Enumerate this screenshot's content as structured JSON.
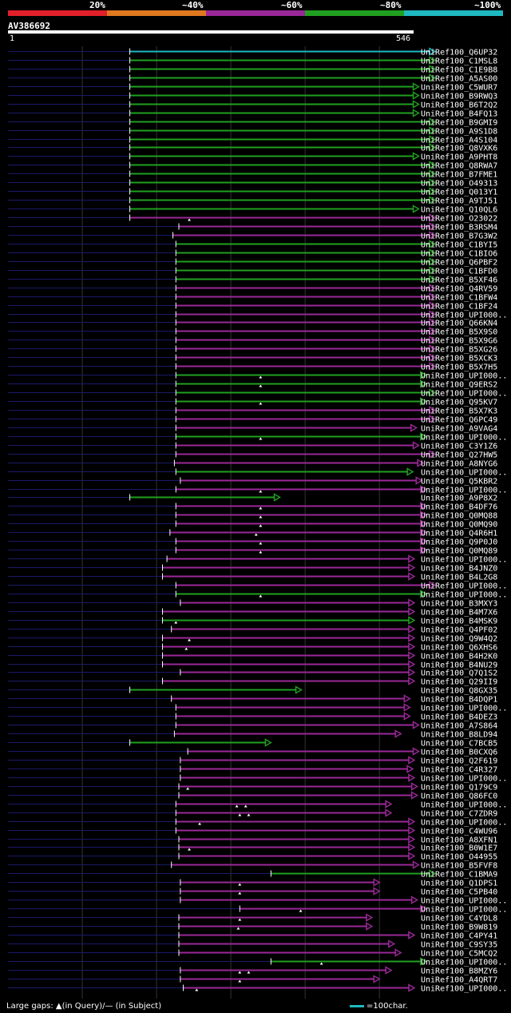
{
  "legend": [
    {
      "label": "20%",
      "color": "#e0202a"
    },
    {
      "label": "~40%",
      "color": "#e07820"
    },
    {
      "label": "~60%",
      "color": "#9a2898"
    },
    {
      "label": "~80%",
      "color": "#20a020"
    },
    {
      "label": "~100%",
      "color": "#1eb8c0"
    }
  ],
  "query": {
    "name": "AV386692",
    "start": "1",
    "end": "546",
    "length": 546
  },
  "colors": {
    "cyan": "#1eb8c0",
    "green": "#20a020",
    "purple": "#9a2898",
    "query_line": "#1a1a6a",
    "gridline": "#333333"
  },
  "footer": {
    "gaps": "Large gaps: ▲(in Query)/— (in Subject)",
    "scale": "=100char."
  },
  "hits": [
    {
      "name": "UniRef100_Q6UP32",
      "color": "cyan",
      "start": 164,
      "end": 575
    },
    {
      "name": "UniRef100_C1MSL8",
      "color": "green",
      "start": 164,
      "end": 575
    },
    {
      "name": "UniRef100_C1E9B8",
      "color": "green",
      "start": 164,
      "end": 575
    },
    {
      "name": "UniRef100_A5AS00",
      "color": "green",
      "start": 164,
      "end": 575
    },
    {
      "name": "UniRef100_C5WUR7",
      "color": "green",
      "start": 164,
      "end": 553
    },
    {
      "name": "UniRef100_B9RWQ3",
      "color": "green",
      "start": 164,
      "end": 553
    },
    {
      "name": "UniRef100_B6T2Q2",
      "color": "green",
      "start": 164,
      "end": 553
    },
    {
      "name": "UniRef100_B4FQ13",
      "color": "green",
      "start": 164,
      "end": 553
    },
    {
      "name": "UniRef100_B9GMI9",
      "color": "green",
      "start": 164,
      "end": 575
    },
    {
      "name": "UniRef100_A9S1D8",
      "color": "green",
      "start": 164,
      "end": 575
    },
    {
      "name": "UniRef100_A4S104",
      "color": "green",
      "start": 164,
      "end": 575
    },
    {
      "name": "UniRef100_Q8VXK6",
      "color": "green",
      "start": 164,
      "end": 575
    },
    {
      "name": "UniRef100_A9PHT8",
      "color": "green",
      "start": 164,
      "end": 553
    },
    {
      "name": "UniRef100_Q8RWA7",
      "color": "green",
      "start": 164,
      "end": 575
    },
    {
      "name": "UniRef100_B7FME1",
      "color": "green",
      "start": 164,
      "end": 575
    },
    {
      "name": "UniRef100_O49313",
      "color": "green",
      "start": 164,
      "end": 575
    },
    {
      "name": "UniRef100_Q013Y1",
      "color": "green",
      "start": 164,
      "end": 575
    },
    {
      "name": "UniRef100_A9TJ51",
      "color": "green",
      "start": 164,
      "end": 575
    },
    {
      "name": "UniRef100_Q10QL6",
      "color": "green",
      "start": 164,
      "end": 553
    },
    {
      "name": "UniRef100_O23022",
      "color": "purple",
      "start": 164,
      "end": 575,
      "marks": [
        244
      ]
    },
    {
      "name": "UniRef100_B3RSM4",
      "color": "purple",
      "start": 230,
      "end": 575
    },
    {
      "name": "UniRef100_B7G3W2",
      "color": "purple",
      "start": 222,
      "end": 575
    },
    {
      "name": "UniRef100_C1BYI5",
      "color": "green",
      "start": 226,
      "end": 575
    },
    {
      "name": "UniRef100_C1BIO6",
      "color": "green",
      "start": 226,
      "end": 575
    },
    {
      "name": "UniRef100_Q6PBF2",
      "color": "green",
      "start": 226,
      "end": 575
    },
    {
      "name": "UniRef100_C1BFD0",
      "color": "green",
      "start": 226,
      "end": 575
    },
    {
      "name": "UniRef100_B5XF46",
      "color": "green",
      "start": 226,
      "end": 575
    },
    {
      "name": "UniRef100_Q4RV59",
      "color": "purple",
      "start": 226,
      "end": 575
    },
    {
      "name": "UniRef100_C1BFW4",
      "color": "purple",
      "start": 226,
      "end": 575
    },
    {
      "name": "UniRef100_C1BF24",
      "color": "purple",
      "start": 226,
      "end": 575
    },
    {
      "name": "UniRef100_UPI000..",
      "color": "purple",
      "start": 226,
      "end": 575
    },
    {
      "name": "UniRef100_Q66KN4",
      "color": "purple",
      "start": 226,
      "end": 575
    },
    {
      "name": "UniRef100_B5X9S0",
      "color": "purple",
      "start": 226,
      "end": 575
    },
    {
      "name": "UniRef100_B5X9G6",
      "color": "purple",
      "start": 226,
      "end": 575
    },
    {
      "name": "UniRef100_B5XG26",
      "color": "purple",
      "start": 226,
      "end": 575
    },
    {
      "name": "UniRef100_B5XCK3",
      "color": "purple",
      "start": 226,
      "end": 575
    },
    {
      "name": "UniRef100_B5X7H5",
      "color": "purple",
      "start": 226,
      "end": 575
    },
    {
      "name": "UniRef100_UPI000..",
      "color": "green",
      "start": 226,
      "end": 563,
      "marks": [
        340
      ]
    },
    {
      "name": "UniRef100_Q9ERS2",
      "color": "green",
      "start": 226,
      "end": 563,
      "marks": [
        340
      ]
    },
    {
      "name": "UniRef100_UPI000..",
      "color": "green",
      "start": 226,
      "end": 575
    },
    {
      "name": "UniRef100_Q95KV7",
      "color": "green",
      "start": 226,
      "end": 563,
      "marks": [
        340
      ]
    },
    {
      "name": "UniRef100_B5X7K3",
      "color": "purple",
      "start": 226,
      "end": 575
    },
    {
      "name": "UniRef100_Q6PC49",
      "color": "purple",
      "start": 226,
      "end": 575
    },
    {
      "name": "UniRef100_A9VAG4",
      "color": "purple",
      "start": 226,
      "end": 550
    },
    {
      "name": "UniRef100_UPI000..",
      "color": "green",
      "start": 226,
      "end": 563,
      "marks": [
        340
      ]
    },
    {
      "name": "UniRef100_C3Y1Z6",
      "color": "purple",
      "start": 226,
      "end": 553
    },
    {
      "name": "UniRef100_Q27HW5",
      "color": "purple",
      "start": 226,
      "end": 575
    },
    {
      "name": "UniRef100_A8NYG6",
      "color": "purple",
      "start": 224,
      "end": 559
    },
    {
      "name": "UniRef100_UPI000..",
      "color": "green",
      "start": 226,
      "end": 545
    },
    {
      "name": "UniRef100_Q5KBR2",
      "color": "purple",
      "start": 232,
      "end": 557
    },
    {
      "name": "UniRef100_UPI000..",
      "color": "purple",
      "start": 226,
      "end": 563,
      "marks": [
        340
      ]
    },
    {
      "name": "UniRef100_A9P8X2",
      "color": "green",
      "start": 164,
      "end": 366
    },
    {
      "name": "UniRef100_B4DF76",
      "color": "purple",
      "start": 226,
      "end": 563,
      "marks": [
        340
      ]
    },
    {
      "name": "UniRef100_Q0MQ88",
      "color": "purple",
      "start": 226,
      "end": 563,
      "marks": [
        340
      ]
    },
    {
      "name": "UniRef100_Q0MQ90",
      "color": "purple",
      "start": 226,
      "end": 563,
      "marks": [
        340
      ]
    },
    {
      "name": "UniRef100_Q4R6H1",
      "color": "purple",
      "start": 218,
      "end": 563,
      "marks": [
        334
      ]
    },
    {
      "name": "UniRef100_Q9P0J0",
      "color": "purple",
      "start": 226,
      "end": 563,
      "marks": [
        340
      ]
    },
    {
      "name": "UniRef100_Q0MQ89",
      "color": "purple",
      "start": 226,
      "end": 563,
      "marks": [
        340
      ]
    },
    {
      "name": "UniRef100_UPI000..",
      "color": "purple",
      "start": 214,
      "end": 547
    },
    {
      "name": "UniRef100_B4JNZ0",
      "color": "purple",
      "start": 208,
      "end": 547
    },
    {
      "name": "UniRef100_B4L2G8",
      "color": "purple",
      "start": 208,
      "end": 547
    },
    {
      "name": "UniRef100_UPI000..",
      "color": "purple",
      "start": 226,
      "end": 575
    },
    {
      "name": "UniRef100_UPI000..",
      "color": "green",
      "start": 226,
      "end": 563,
      "marks": [
        340
      ]
    },
    {
      "name": "UniRef100_B3MXY3",
      "color": "purple",
      "start": 232,
      "end": 547
    },
    {
      "name": "UniRef100_B4M7X6",
      "color": "purple",
      "start": 208,
      "end": 547
    },
    {
      "name": "UniRef100_B4MSK9",
      "color": "green",
      "start": 208,
      "end": 547,
      "marks": [
        226
      ]
    },
    {
      "name": "UniRef100_Q4PF02",
      "color": "purple",
      "start": 220,
      "end": 547
    },
    {
      "name": "UniRef100_Q9W4Q2",
      "color": "purple",
      "start": 208,
      "end": 547,
      "marks": [
        244
      ]
    },
    {
      "name": "UniRef100_Q6XHS6",
      "color": "purple",
      "start": 208,
      "end": 547,
      "marks": [
        240
      ]
    },
    {
      "name": "UniRef100_B4H2K0",
      "color": "purple",
      "start": 208,
      "end": 547
    },
    {
      "name": "UniRef100_B4NU29",
      "color": "purple",
      "start": 208,
      "end": 547
    },
    {
      "name": "UniRef100_Q7Q1S2",
      "color": "purple",
      "start": 232,
      "end": 547
    },
    {
      "name": "UniRef100_Q29II9",
      "color": "purple",
      "start": 208,
      "end": 547
    },
    {
      "name": "UniRef100_Q8GX35",
      "color": "green",
      "start": 164,
      "end": 395
    },
    {
      "name": "UniRef100_B4DQP1",
      "color": "purple",
      "start": 220,
      "end": 541
    },
    {
      "name": "UniRef100_UPI000..",
      "color": "purple",
      "start": 226,
      "end": 541
    },
    {
      "name": "UniRef100_B4DEZ3",
      "color": "purple",
      "start": 226,
      "end": 541
    },
    {
      "name": "UniRef100_A7S864",
      "color": "purple",
      "start": 226,
      "end": 553
    },
    {
      "name": "UniRef100_B8LD94",
      "color": "purple",
      "start": 224,
      "end": 529
    },
    {
      "name": "UniRef100_C7BCB5",
      "color": "green",
      "start": 164,
      "end": 354
    },
    {
      "name": "UniRef100_B0CXQ6",
      "color": "purple",
      "start": 242,
      "end": 553
    },
    {
      "name": "UniRef100_Q2F619",
      "color": "purple",
      "start": 232,
      "end": 547
    },
    {
      "name": "UniRef100_C4R327",
      "color": "purple",
      "start": 232,
      "end": 545
    },
    {
      "name": "UniRef100_UPI000..",
      "color": "purple",
      "start": 232,
      "end": 547
    },
    {
      "name": "UniRef100_Q179C9",
      "color": "purple",
      "start": 230,
      "end": 551,
      "marks": [
        242
      ]
    },
    {
      "name": "UniRef100_Q86FC0",
      "color": "purple",
      "start": 230,
      "end": 551
    },
    {
      "name": "UniRef100_UPI000..",
      "color": "purple",
      "start": 226,
      "end": 516,
      "marks": [
        308,
        320
      ]
    },
    {
      "name": "UniRef100_C7ZDR9",
      "color": "purple",
      "start": 226,
      "end": 516,
      "marks": [
        312,
        324
      ]
    },
    {
      "name": "UniRef100_UPI000..",
      "color": "purple",
      "start": 226,
      "end": 547,
      "marks": [
        258
      ]
    },
    {
      "name": "UniRef100_C4WU96",
      "color": "purple",
      "start": 226,
      "end": 547
    },
    {
      "name": "UniRef100_A8XFN1",
      "color": "purple",
      "start": 230,
      "end": 547
    },
    {
      "name": "UniRef100_B0W1E7",
      "color": "purple",
      "start": 230,
      "end": 547,
      "marks": [
        244
      ]
    },
    {
      "name": "UniRef100_O44955",
      "color": "purple",
      "start": 230,
      "end": 547
    },
    {
      "name": "UniRef100_B5FVF8",
      "color": "purple",
      "start": 220,
      "end": 553
    },
    {
      "name": "UniRef100_C1BMA9",
      "color": "green",
      "start": 354,
      "end": 575
    },
    {
      "name": "UniRef100_Q1DPS1",
      "color": "purple",
      "start": 232,
      "end": 500,
      "marks": [
        312
      ]
    },
    {
      "name": "UniRef100_C5PB40",
      "color": "purple",
      "start": 232,
      "end": 500,
      "marks": [
        312
      ]
    },
    {
      "name": "UniRef100_UPI000..",
      "color": "purple",
      "start": 232,
      "end": 551
    },
    {
      "name": "UniRef100_UPI000..",
      "color": "purple",
      "start": 312,
      "end": 563,
      "marks": [
        394
      ]
    },
    {
      "name": "UniRef100_C4YDL8",
      "color": "purple",
      "start": 230,
      "end": 490,
      "marks": [
        312
      ]
    },
    {
      "name": "UniRef100_B9W819",
      "color": "purple",
      "start": 230,
      "end": 490,
      "marks": [
        310
      ]
    },
    {
      "name": "UniRef100_C4PY41",
      "color": "purple",
      "start": 230,
      "end": 547
    },
    {
      "name": "UniRef100_C9SY35",
      "color": "purple",
      "start": 230,
      "end": 520
    },
    {
      "name": "UniRef100_C5MCQ2",
      "color": "purple",
      "start": 230,
      "end": 529
    },
    {
      "name": "UniRef100_UPI000..",
      "color": "green",
      "start": 354,
      "end": 563,
      "marks": [
        422
      ]
    },
    {
      "name": "UniRef100_B8MZY6",
      "color": "purple",
      "start": 232,
      "end": 516,
      "marks": [
        312,
        324
      ]
    },
    {
      "name": "UniRef100_A4QRT7",
      "color": "purple",
      "start": 232,
      "end": 500,
      "marks": [
        312
      ]
    },
    {
      "name": "UniRef100_UPI000..",
      "color": "purple",
      "start": 236,
      "end": 547,
      "marks": [
        254
      ]
    }
  ]
}
